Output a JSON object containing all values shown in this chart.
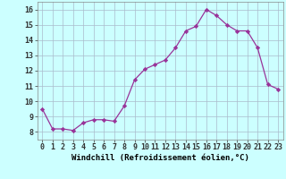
{
  "x": [
    0,
    1,
    2,
    3,
    4,
    5,
    6,
    7,
    8,
    9,
    10,
    11,
    12,
    13,
    14,
    15,
    16,
    17,
    18,
    19,
    20,
    21,
    22,
    23
  ],
  "y": [
    9.5,
    8.2,
    8.2,
    8.1,
    8.6,
    8.8,
    8.8,
    8.7,
    9.7,
    11.4,
    12.1,
    12.4,
    12.7,
    13.5,
    14.6,
    14.9,
    16.0,
    15.6,
    15.0,
    14.6,
    14.6,
    13.5,
    11.1,
    10.8
  ],
  "line_color": "#993399",
  "marker": "D",
  "marker_size": 2.2,
  "bg_color": "#ccffff",
  "grid_color": "#aabbcc",
  "xlabel": "Windchill (Refroidissement éolien,°C)",
  "xlabel_fontsize": 6.5,
  "tick_fontsize": 6.0,
  "ylabel_ticks": [
    8,
    9,
    10,
    11,
    12,
    13,
    14,
    15,
    16
  ],
  "xlim": [
    -0.5,
    23.5
  ],
  "ylim": [
    7.5,
    16.5
  ]
}
